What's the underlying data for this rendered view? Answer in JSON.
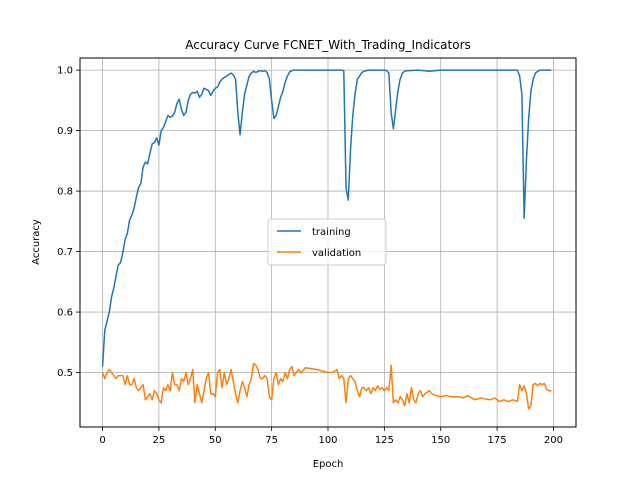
{
  "chart_data": {
    "type": "line",
    "title": "Accuracy Curve FCNET_With_Trading_Indicators",
    "xlabel": "Epoch",
    "ylabel": "Accuracy",
    "xlim": [
      -10,
      210
    ],
    "ylim": [
      0.41,
      1.02
    ],
    "xticks": [
      0,
      25,
      50,
      75,
      100,
      125,
      150,
      175,
      200
    ],
    "yticks": [
      0.5,
      0.6,
      0.7,
      0.8,
      0.9,
      1.0
    ],
    "ytick_labels": [
      "0.5",
      "0.6",
      "0.7",
      "0.8",
      "0.9",
      "1.0"
    ],
    "grid": true,
    "legend_position": "center-right",
    "series": [
      {
        "name": "training",
        "color": "#1f77b4",
        "points": [
          [
            0,
            0.51
          ],
          [
            1,
            0.57
          ],
          [
            2,
            0.585
          ],
          [
            3,
            0.6
          ],
          [
            4,
            0.625
          ],
          [
            5,
            0.64
          ],
          [
            6,
            0.66
          ],
          [
            7,
            0.678
          ],
          [
            8,
            0.682
          ],
          [
            9,
            0.698
          ],
          [
            10,
            0.72
          ],
          [
            11,
            0.73
          ],
          [
            12,
            0.752
          ],
          [
            13,
            0.76
          ],
          [
            14,
            0.772
          ],
          [
            15,
            0.79
          ],
          [
            16,
            0.806
          ],
          [
            17,
            0.813
          ],
          [
            18,
            0.84
          ],
          [
            19,
            0.848
          ],
          [
            20,
            0.845
          ],
          [
            21,
            0.862
          ],
          [
            22,
            0.878
          ],
          [
            23,
            0.88
          ],
          [
            24,
            0.888
          ],
          [
            25,
            0.876
          ],
          [
            26,
            0.9
          ],
          [
            27,
            0.905
          ],
          [
            28,
            0.915
          ],
          [
            29,
            0.925
          ],
          [
            30,
            0.922
          ],
          [
            31,
            0.924
          ],
          [
            32,
            0.93
          ],
          [
            33,
            0.945
          ],
          [
            34,
            0.952
          ],
          [
            35,
            0.935
          ],
          [
            36,
            0.925
          ],
          [
            37,
            0.93
          ],
          [
            38,
            0.95
          ],
          [
            39,
            0.96
          ],
          [
            40,
            0.963
          ],
          [
            41,
            0.962
          ],
          [
            42,
            0.965
          ],
          [
            43,
            0.955
          ],
          [
            44,
            0.96
          ],
          [
            45,
            0.97
          ],
          [
            46,
            0.968
          ],
          [
            47,
            0.966
          ],
          [
            48,
            0.958
          ],
          [
            49,
            0.965
          ],
          [
            50,
            0.97
          ],
          [
            51,
            0.972
          ],
          [
            52,
            0.98
          ],
          [
            53,
            0.985
          ],
          [
            54,
            0.988
          ],
          [
            55,
            0.99
          ],
          [
            56,
            0.993
          ],
          [
            57,
            0.995
          ],
          [
            58,
            0.992
          ],
          [
            59,
            0.985
          ],
          [
            60,
            0.93
          ],
          [
            61,
            0.893
          ],
          [
            62,
            0.93
          ],
          [
            63,
            0.96
          ],
          [
            64,
            0.975
          ],
          [
            65,
            0.99
          ],
          [
            66,
            0.995
          ],
          [
            67,
            0.998
          ],
          [
            68,
            0.996
          ],
          [
            69,
            0.998
          ],
          [
            70,
            0.999
          ],
          [
            71,
            0.998
          ],
          [
            72,
            0.999
          ],
          [
            73,
            0.996
          ],
          [
            74,
            0.985
          ],
          [
            75,
            0.95
          ],
          [
            76,
            0.92
          ],
          [
            77,
            0.925
          ],
          [
            78,
            0.94
          ],
          [
            79,
            0.955
          ],
          [
            80,
            0.965
          ],
          [
            81,
            0.98
          ],
          [
            82,
            0.99
          ],
          [
            83,
            0.997
          ],
          [
            84,
            0.999
          ],
          [
            85,
            1.0
          ],
          [
            90,
            1.0
          ],
          [
            95,
            1.0
          ],
          [
            100,
            1.0
          ],
          [
            105,
            1.0
          ],
          [
            106,
            1.0
          ],
          [
            107,
            0.999
          ],
          [
            108,
            0.805
          ],
          [
            109,
            0.785
          ],
          [
            110,
            0.87
          ],
          [
            111,
            0.925
          ],
          [
            112,
            0.96
          ],
          [
            113,
            0.985
          ],
          [
            114,
            0.99
          ],
          [
            115,
            0.996
          ],
          [
            116,
            0.998
          ],
          [
            117,
            0.999
          ],
          [
            118,
            1.0
          ],
          [
            125,
            1.0
          ],
          [
            126,
            0.999
          ],
          [
            127,
            0.995
          ],
          [
            128,
            0.93
          ],
          [
            129,
            0.903
          ],
          [
            130,
            0.935
          ],
          [
            131,
            0.965
          ],
          [
            132,
            0.985
          ],
          [
            133,
            0.995
          ],
          [
            134,
            0.998
          ],
          [
            135,
            0.999
          ],
          [
            140,
            1.0
          ],
          [
            145,
            0.998
          ],
          [
            150,
            1.0
          ],
          [
            160,
            1.0
          ],
          [
            170,
            1.0
          ],
          [
            180,
            1.0
          ],
          [
            184,
            1.0
          ],
          [
            185,
            0.99
          ],
          [
            186,
            0.96
          ],
          [
            187,
            0.755
          ],
          [
            188,
            0.85
          ],
          [
            189,
            0.92
          ],
          [
            190,
            0.965
          ],
          [
            191,
            0.985
          ],
          [
            192,
            0.995
          ],
          [
            193,
            0.998
          ],
          [
            194,
            1.0
          ],
          [
            199,
            1.0
          ]
        ]
      },
      {
        "name": "validation",
        "color": "#ff7f0e",
        "points": [
          [
            0,
            0.5
          ],
          [
            1,
            0.49
          ],
          [
            2,
            0.5
          ],
          [
            3,
            0.505
          ],
          [
            4,
            0.5
          ],
          [
            5,
            0.495
          ],
          [
            6,
            0.49
          ],
          [
            7,
            0.495
          ],
          [
            8,
            0.495
          ],
          [
            9,
            0.495
          ],
          [
            10,
            0.48
          ],
          [
            11,
            0.495
          ],
          [
            12,
            0.48
          ],
          [
            13,
            0.48
          ],
          [
            14,
            0.49
          ],
          [
            15,
            0.475
          ],
          [
            16,
            0.47
          ],
          [
            17,
            0.475
          ],
          [
            18,
            0.48
          ],
          [
            19,
            0.455
          ],
          [
            20,
            0.46
          ],
          [
            21,
            0.465
          ],
          [
            22,
            0.455
          ],
          [
            23,
            0.47
          ],
          [
            24,
            0.465
          ],
          [
            25,
            0.455
          ],
          [
            26,
            0.45
          ],
          [
            27,
            0.475
          ],
          [
            28,
            0.47
          ],
          [
            29,
            0.48
          ],
          [
            30,
            0.47
          ],
          [
            31,
            0.5
          ],
          [
            32,
            0.48
          ],
          [
            33,
            0.48
          ],
          [
            34,
            0.47
          ],
          [
            35,
            0.49
          ],
          [
            36,
            0.485
          ],
          [
            37,
            0.5
          ],
          [
            38,
            0.48
          ],
          [
            39,
            0.49
          ],
          [
            40,
            0.505
          ],
          [
            41,
            0.45
          ],
          [
            42,
            0.48
          ],
          [
            43,
            0.465
          ],
          [
            44,
            0.45
          ],
          [
            45,
            0.47
          ],
          [
            46,
            0.49
          ],
          [
            47,
            0.5
          ],
          [
            48,
            0.465
          ],
          [
            49,
            0.465
          ],
          [
            50,
            0.46
          ],
          [
            51,
            0.5
          ],
          [
            52,
            0.505
          ],
          [
            53,
            0.475
          ],
          [
            54,
            0.5
          ],
          [
            55,
            0.48
          ],
          [
            56,
            0.49
          ],
          [
            57,
            0.505
          ],
          [
            58,
            0.485
          ],
          [
            59,
            0.465
          ],
          [
            60,
            0.45
          ],
          [
            61,
            0.47
          ],
          [
            62,
            0.485
          ],
          [
            63,
            0.475
          ],
          [
            64,
            0.46
          ],
          [
            65,
            0.48
          ],
          [
            66,
            0.49
          ],
          [
            67,
            0.515
          ],
          [
            68,
            0.512
          ],
          [
            69,
            0.505
          ],
          [
            70,
            0.49
          ],
          [
            71,
            0.49
          ],
          [
            72,
            0.495
          ],
          [
            73,
            0.49
          ],
          [
            74,
            0.46
          ],
          [
            75,
            0.455
          ],
          [
            76,
            0.49
          ],
          [
            77,
            0.5
          ],
          [
            78,
            0.48
          ],
          [
            79,
            0.49
          ],
          [
            80,
            0.485
          ],
          [
            81,
            0.5
          ],
          [
            82,
            0.49
          ],
          [
            83,
            0.505
          ],
          [
            84,
            0.51
          ],
          [
            85,
            0.495
          ],
          [
            86,
            0.5
          ],
          [
            87,
            0.505
          ],
          [
            88,
            0.5
          ],
          [
            90,
            0.508
          ],
          [
            95,
            0.505
          ],
          [
            100,
            0.5
          ],
          [
            102,
            0.5
          ],
          [
            104,
            0.505
          ],
          [
            105,
            0.49
          ],
          [
            106,
            0.495
          ],
          [
            107,
            0.49
          ],
          [
            108,
            0.45
          ],
          [
            109,
            0.49
          ],
          [
            110,
            0.495
          ],
          [
            111,
            0.49
          ],
          [
            112,
            0.485
          ],
          [
            113,
            0.47
          ],
          [
            114,
            0.46
          ],
          [
            115,
            0.475
          ],
          [
            116,
            0.475
          ],
          [
            117,
            0.47
          ],
          [
            118,
            0.475
          ],
          [
            119,
            0.465
          ],
          [
            120,
            0.475
          ],
          [
            121,
            0.47
          ],
          [
            122,
            0.478
          ],
          [
            123,
            0.472
          ],
          [
            124,
            0.475
          ],
          [
            125,
            0.47
          ],
          [
            126,
            0.475
          ],
          [
            127,
            0.47
          ],
          [
            128,
            0.512
          ],
          [
            129,
            0.45
          ],
          [
            130,
            0.455
          ],
          [
            131,
            0.45
          ],
          [
            132,
            0.46
          ],
          [
            133,
            0.455
          ],
          [
            134,
            0.445
          ],
          [
            135,
            0.465
          ],
          [
            136,
            0.45
          ],
          [
            137,
            0.475
          ],
          [
            138,
            0.455
          ],
          [
            139,
            0.45
          ],
          [
            140,
            0.465
          ],
          [
            141,
            0.47
          ],
          [
            142,
            0.46
          ],
          [
            143,
            0.465
          ],
          [
            145,
            0.47
          ],
          [
            146,
            0.465
          ],
          [
            148,
            0.462
          ],
          [
            150,
            0.46
          ],
          [
            152,
            0.462
          ],
          [
            155,
            0.46
          ],
          [
            158,
            0.46
          ],
          [
            160,
            0.458
          ],
          [
            162,
            0.462
          ],
          [
            165,
            0.455
          ],
          [
            168,
            0.458
          ],
          [
            170,
            0.456
          ],
          [
            172,
            0.455
          ],
          [
            174,
            0.458
          ],
          [
            176,
            0.452
          ],
          [
            178,
            0.455
          ],
          [
            180,
            0.452
          ],
          [
            182,
            0.455
          ],
          [
            184,
            0.452
          ],
          [
            185,
            0.48
          ],
          [
            186,
            0.47
          ],
          [
            187,
            0.478
          ],
          [
            188,
            0.465
          ],
          [
            189,
            0.44
          ],
          [
            190,
            0.445
          ],
          [
            191,
            0.48
          ],
          [
            192,
            0.482
          ],
          [
            193,
            0.478
          ],
          [
            194,
            0.482
          ],
          [
            195,
            0.48
          ],
          [
            196,
            0.482
          ],
          [
            197,
            0.472
          ],
          [
            198,
            0.47
          ],
          [
            199,
            0.47
          ]
        ]
      }
    ]
  }
}
